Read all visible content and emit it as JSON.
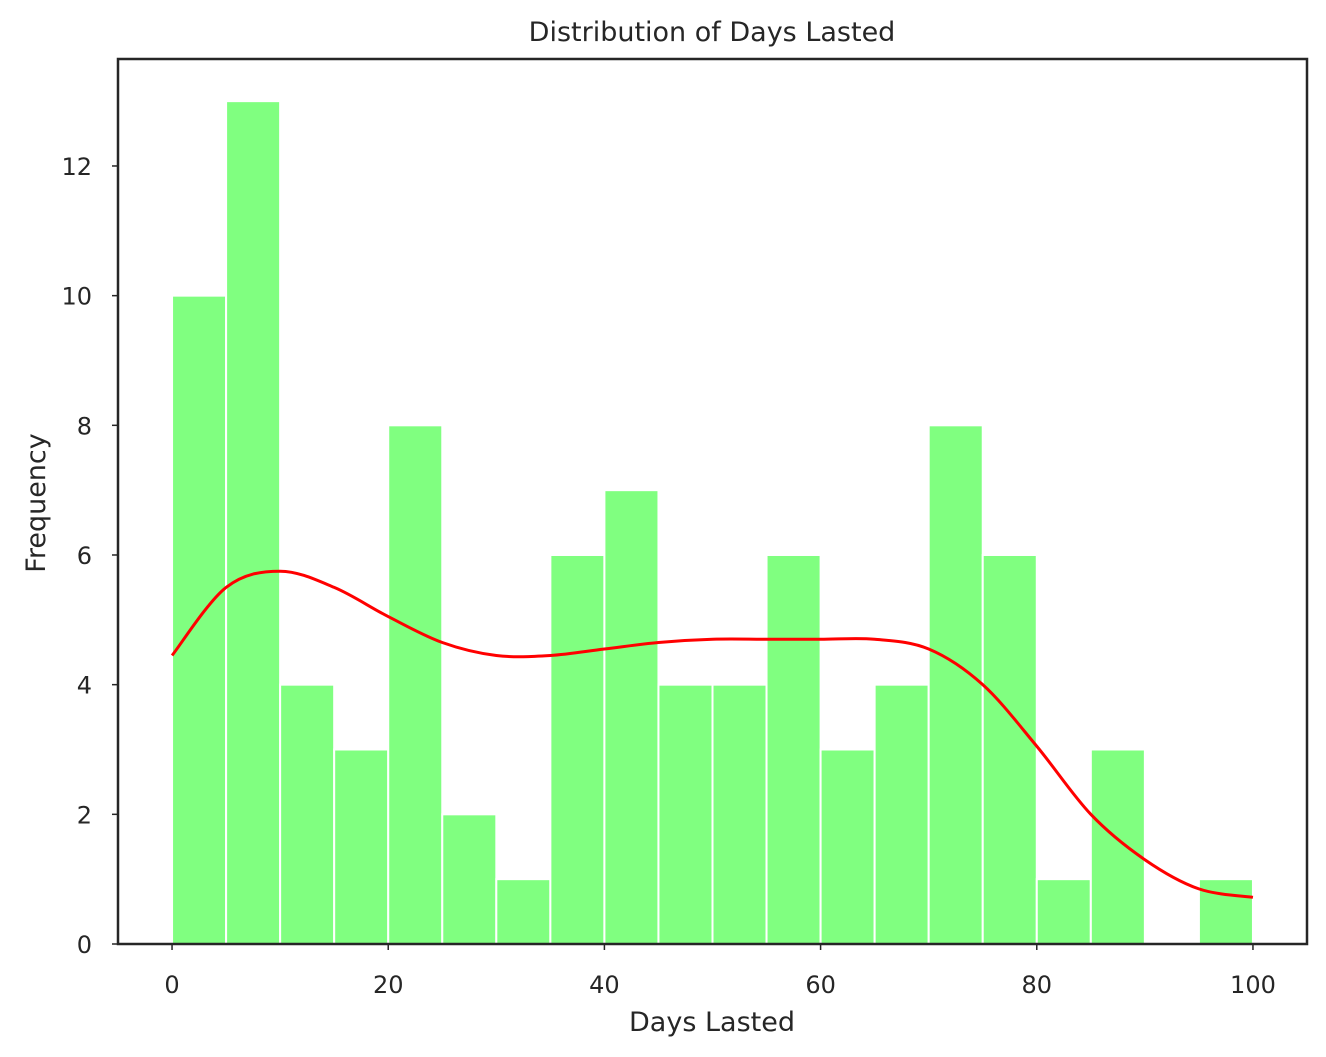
{
  "chart_data": {
    "type": "bar",
    "title": "Distribution of Days Lasted",
    "xlabel": "Days Lasted",
    "ylabel": "Frequency",
    "bin_edges": [
      0,
      5,
      10,
      15,
      20,
      25,
      30,
      35,
      40,
      45,
      50,
      55,
      60,
      65,
      70,
      75,
      80,
      85,
      90,
      95,
      100
    ],
    "values": [
      10,
      13,
      4,
      3,
      8,
      2,
      1,
      6,
      7,
      4,
      4,
      6,
      3,
      4,
      8,
      6,
      1,
      3,
      0,
      1
    ],
    "xlim": [
      -5,
      105
    ],
    "ylim": [
      0,
      13.65
    ],
    "xticks": [
      0,
      20,
      40,
      60,
      80,
      100
    ],
    "yticks": [
      0,
      2,
      4,
      6,
      8,
      10,
      12
    ],
    "grid": false,
    "bar_color": "#80ff80",
    "kde": {
      "color": "#ff0000",
      "x": [
        0,
        5,
        10,
        15,
        20,
        25,
        30,
        35,
        40,
        45,
        50,
        55,
        60,
        65,
        70,
        75,
        80,
        85,
        90,
        95,
        100
      ],
      "y": [
        4.45,
        5.5,
        5.75,
        5.5,
        5.05,
        4.65,
        4.45,
        4.45,
        4.55,
        4.65,
        4.7,
        4.7,
        4.7,
        4.7,
        4.55,
        4.0,
        3.05,
        2.0,
        1.3,
        0.85,
        0.72
      ]
    }
  }
}
